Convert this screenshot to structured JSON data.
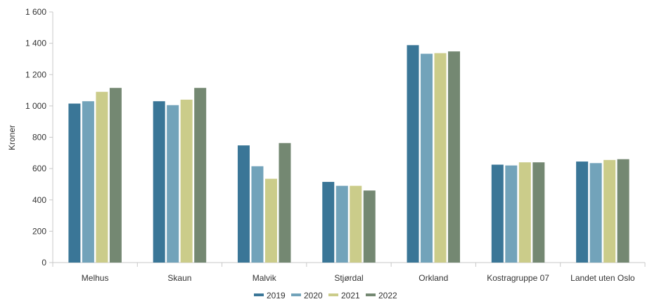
{
  "chart_data": {
    "type": "bar",
    "title": "",
    "xlabel": "",
    "ylabel": "Kroner",
    "ylim": [
      0,
      1600
    ],
    "yticks": [
      0,
      200,
      400,
      600,
      800,
      1000,
      1200,
      1400,
      1600
    ],
    "ytick_labels": [
      "0",
      "200",
      "400",
      "600",
      "800",
      "1 000",
      "1 200",
      "1 400",
      "1 600"
    ],
    "grid": false,
    "legend_position": "bottom",
    "categories": [
      "Melhus",
      "Skaun",
      "Malvik",
      "Stjørdal",
      "Orkland",
      "Kostragruppe 07",
      "Landet uten Oslo"
    ],
    "series": [
      {
        "name": "2019",
        "color": "#3a7697",
        "values": [
          1015,
          1030,
          748,
          515,
          1388,
          625,
          645
        ]
      },
      {
        "name": "2020",
        "color": "#72a3ba",
        "values": [
          1030,
          1005,
          615,
          490,
          1333,
          620,
          635
        ]
      },
      {
        "name": "2021",
        "color": "#cbcc8a",
        "values": [
          1090,
          1040,
          535,
          490,
          1337,
          640,
          655
        ]
      },
      {
        "name": "2022",
        "color": "#748872",
        "values": [
          1115,
          1115,
          763,
          460,
          1348,
          640,
          660
        ]
      }
    ],
    "axis_color": "#c8c8c8"
  }
}
